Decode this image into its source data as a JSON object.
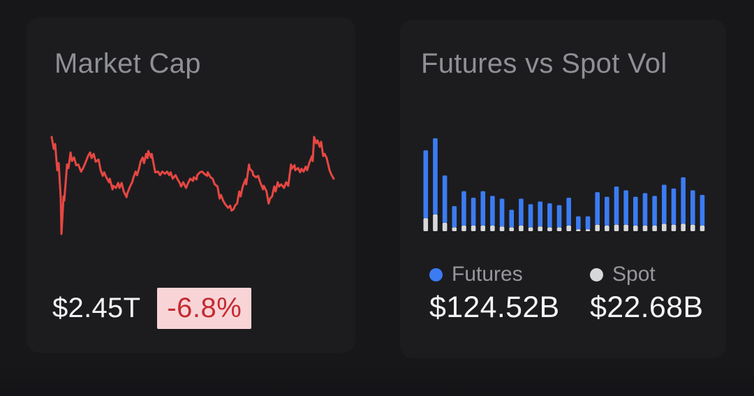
{
  "page": {
    "background_color": "#17171a",
    "card_color": "#1c1c1f"
  },
  "market_cap_card": {
    "title": "Market Cap",
    "value": "$2.45T",
    "change": "-6.8%",
    "change_direction": "down",
    "badge_bg_color": "#f8d4d7",
    "badge_text_color": "#c32b30"
  },
  "futures_spot_card": {
    "title": "Futures vs Spot Vol",
    "legend": [
      {
        "label": "Futures",
        "value": "$124.52B",
        "color": "#3b7cf2"
      },
      {
        "label": "Spot",
        "value": "$22.68B",
        "color": "#d7d8da"
      }
    ]
  },
  "chart_data": [
    {
      "type": "line",
      "title": "Market Cap trend sparkline",
      "color": "#e64742",
      "stroke_width": 3,
      "axes_shown": false,
      "grid": false,
      "x_range": [
        0,
        403
      ],
      "y_range": [
        0,
        140
      ],
      "note": "pixel-space polyline, y=0 is chart top; no tick labels shown in UI",
      "points": [
        [
          0,
          1
        ],
        [
          3,
          18
        ],
        [
          5,
          11
        ],
        [
          8,
          48
        ],
        [
          10,
          38
        ],
        [
          13,
          88
        ],
        [
          14,
          138
        ],
        [
          17,
          85
        ],
        [
          18,
          91
        ],
        [
          22,
          40
        ],
        [
          24,
          45
        ],
        [
          27,
          23
        ],
        [
          29,
          35
        ],
        [
          32,
          30
        ],
        [
          35,
          41
        ],
        [
          38,
          40
        ],
        [
          42,
          50
        ],
        [
          45,
          45
        ],
        [
          48,
          38
        ],
        [
          52,
          28
        ],
        [
          55,
          23
        ],
        [
          57,
          31
        ],
        [
          60,
          25
        ],
        [
          63,
          36
        ],
        [
          67,
          33
        ],
        [
          70,
          48
        ],
        [
          73,
          56
        ],
        [
          75,
          51
        ],
        [
          78,
          58
        ],
        [
          82,
          65
        ],
        [
          83,
          60
        ],
        [
          87,
          75
        ],
        [
          88,
          70
        ],
        [
          92,
          73
        ],
        [
          95,
          66
        ],
        [
          97,
          73
        ],
        [
          100,
          66
        ],
        [
          103,
          78
        ],
        [
          107,
          86
        ],
        [
          108,
          81
        ],
        [
          112,
          71
        ],
        [
          115,
          65
        ],
        [
          117,
          58
        ],
        [
          120,
          50
        ],
        [
          122,
          55
        ],
        [
          125,
          45
        ],
        [
          127,
          36
        ],
        [
          130,
          30
        ],
        [
          132,
          38
        ],
        [
          135,
          25
        ],
        [
          137,
          31
        ],
        [
          138,
          21
        ],
        [
          142,
          30
        ],
        [
          143,
          25
        ],
        [
          147,
          46
        ],
        [
          148,
          51
        ],
        [
          152,
          50
        ],
        [
          155,
          55
        ],
        [
          158,
          50
        ],
        [
          162,
          53
        ],
        [
          165,
          50
        ],
        [
          168,
          55
        ],
        [
          170,
          51
        ],
        [
          173,
          60
        ],
        [
          177,
          55
        ],
        [
          180,
          61
        ],
        [
          183,
          66
        ],
        [
          185,
          71
        ],
        [
          188,
          65
        ],
        [
          192,
          73
        ],
        [
          195,
          66
        ],
        [
          198,
          60
        ],
        [
          202,
          63
        ],
        [
          203,
          58
        ],
        [
          207,
          61
        ],
        [
          208,
          55
        ],
        [
          212,
          51
        ],
        [
          215,
          50
        ],
        [
          218,
          53
        ],
        [
          222,
          56
        ],
        [
          223,
          51
        ],
        [
          227,
          58
        ],
        [
          230,
          60
        ],
        [
          233,
          68
        ],
        [
          237,
          71
        ],
        [
          240,
          88
        ],
        [
          242,
          83
        ],
        [
          245,
          91
        ],
        [
          248,
          96
        ],
        [
          252,
          101
        ],
        [
          255,
          98
        ],
        [
          257,
          105
        ],
        [
          260,
          103
        ],
        [
          262,
          98
        ],
        [
          265,
          95
        ],
        [
          268,
          78
        ],
        [
          270,
          85
        ],
        [
          273,
          71
        ],
        [
          277,
          61
        ],
        [
          278,
          68
        ],
        [
          282,
          40
        ],
        [
          283,
          46
        ],
        [
          287,
          50
        ],
        [
          288,
          55
        ],
        [
          292,
          58
        ],
        [
          295,
          56
        ],
        [
          298,
          65
        ],
        [
          302,
          75
        ],
        [
          303,
          70
        ],
        [
          307,
          78
        ],
        [
          310,
          95
        ],
        [
          312,
          88
        ],
        [
          315,
          85
        ],
        [
          318,
          71
        ],
        [
          320,
          78
        ],
        [
          323,
          65
        ],
        [
          325,
          71
        ],
        [
          328,
          68
        ],
        [
          332,
          73
        ],
        [
          335,
          65
        ],
        [
          338,
          70
        ],
        [
          342,
          40
        ],
        [
          343,
          46
        ],
        [
          347,
          41
        ],
        [
          348,
          48
        ],
        [
          352,
          45
        ],
        [
          355,
          51
        ],
        [
          357,
          46
        ],
        [
          360,
          50
        ],
        [
          363,
          43
        ],
        [
          365,
          48
        ],
        [
          368,
          38
        ],
        [
          372,
          28
        ],
        [
          373,
          35
        ],
        [
          375,
          1
        ],
        [
          378,
          10
        ],
        [
          380,
          6
        ],
        [
          383,
          15
        ],
        [
          385,
          8
        ],
        [
          388,
          28
        ],
        [
          390,
          25
        ],
        [
          393,
          31
        ],
        [
          397,
          48
        ],
        [
          400,
          55
        ],
        [
          403,
          60
        ]
      ]
    },
    {
      "type": "bar",
      "stacked": true,
      "title": "Futures vs Spot Volume",
      "unit": "relative height, 100 = tallest stacked bar (no value axis shown)",
      "categories_count": 30,
      "grid": false,
      "legend_position": "below",
      "series": [
        {
          "name": "Futures",
          "color": "#3b7cf2",
          "values": [
            73,
            82,
            51,
            23,
            37,
            30,
            37,
            32,
            30,
            19,
            29,
            25,
            27,
            26,
            24,
            30,
            14,
            14,
            35,
            31,
            41,
            37,
            31,
            35,
            32,
            42,
            39,
            50,
            37,
            33
          ]
        },
        {
          "name": "Spot",
          "color": "#d7d8da",
          "values": [
            14,
            18,
            9,
            4,
            6,
            6,
            6,
            6,
            5,
            4,
            6,
            4,
            5,
            4,
            4,
            6,
            2,
            2,
            7,
            6,
            7,
            7,
            6,
            6,
            6,
            8,
            7,
            8,
            7,
            6
          ]
        }
      ]
    }
  ]
}
